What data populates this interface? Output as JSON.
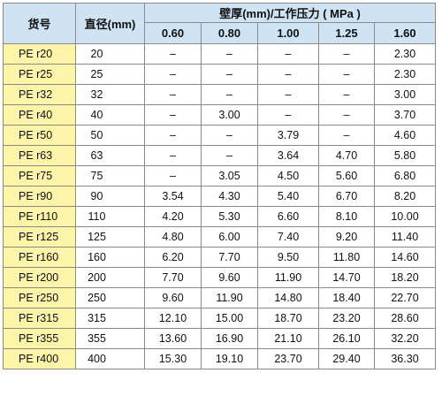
{
  "table": {
    "header": {
      "code": "货号",
      "diameter": "直径(mm)",
      "group": "壁厚(mm)/工作压力 ( MPa )",
      "pressures": [
        "0.60",
        "0.80",
        "1.00",
        "1.25",
        "1.60"
      ]
    },
    "rows": [
      {
        "code": "PE r20",
        "dia": "20",
        "v": [
          "–",
          "–",
          "–",
          "–",
          "2.30"
        ]
      },
      {
        "code": "PE r25",
        "dia": "25",
        "v": [
          "–",
          "–",
          "–",
          "–",
          "2.30"
        ]
      },
      {
        "code": "PE r32",
        "dia": "32",
        "v": [
          "–",
          "–",
          "–",
          "–",
          "3.00"
        ]
      },
      {
        "code": "PE r40",
        "dia": "40",
        "v": [
          "–",
          "3.00",
          "–",
          "–",
          "3.70"
        ]
      },
      {
        "code": "PE r50",
        "dia": "50",
        "v": [
          "–",
          "–",
          "3.79",
          "–",
          "4.60"
        ]
      },
      {
        "code": "PE r63",
        "dia": "63",
        "v": [
          "–",
          "–",
          "3.64",
          "4.70",
          "5.80"
        ]
      },
      {
        "code": "PE r75",
        "dia": "75",
        "v": [
          "–",
          "3.05",
          "4.50",
          "5.60",
          "6.80"
        ]
      },
      {
        "code": "PE r90",
        "dia": "90",
        "v": [
          "3.54",
          "4.30",
          "5.40",
          "6.70",
          "8.20"
        ]
      },
      {
        "code": "PE r110",
        "dia": "110",
        "v": [
          "4.20",
          "5.30",
          "6.60",
          "8.10",
          "10.00"
        ]
      },
      {
        "code": "PE r125",
        "dia": "125",
        "v": [
          "4.80",
          "6.00",
          "7.40",
          "9.20",
          "11.40"
        ]
      },
      {
        "code": "PE r160",
        "dia": "160",
        "v": [
          "6.20",
          "7.70",
          "9.50",
          "11.80",
          "14.60"
        ]
      },
      {
        "code": "PE r200",
        "dia": "200",
        "v": [
          "7.70",
          "9.60",
          "11.90",
          "14.70",
          "18.20"
        ]
      },
      {
        "code": "PE r250",
        "dia": "250",
        "v": [
          "9.60",
          "11.90",
          "14.80",
          "18.40",
          "22.70"
        ]
      },
      {
        "code": "PE r315",
        "dia": "315",
        "v": [
          "12.10",
          "15.00",
          "18.70",
          "23.20",
          "28.60"
        ]
      },
      {
        "code": "PE r355",
        "dia": "355",
        "v": [
          "13.60",
          "16.90",
          "21.10",
          "26.10",
          "32.20"
        ]
      },
      {
        "code": "PE r400",
        "dia": "400",
        "v": [
          "15.30",
          "19.10",
          "23.70",
          "29.40",
          "36.30"
        ]
      }
    ]
  },
  "colors": {
    "header_bg": "#cfe3f3",
    "code_col_bg": "#fbf4a9",
    "grid": "#8a8a8a"
  }
}
